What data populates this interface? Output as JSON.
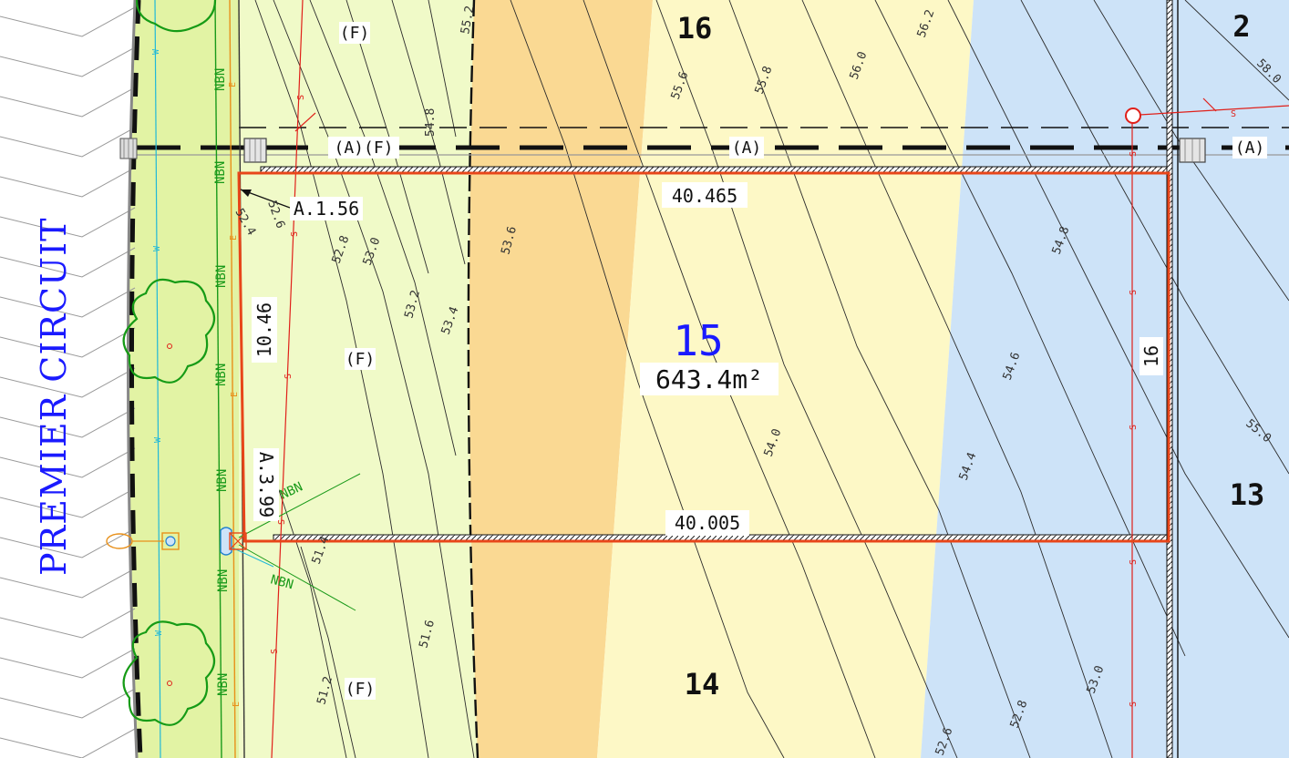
{
  "road": {
    "name": "PREMIER CIRCUIT"
  },
  "subject_lot": {
    "number": "15",
    "area": "643.4m²"
  },
  "neighbour_lots": {
    "north": "16",
    "south": "14",
    "east": "13",
    "north_east": "2"
  },
  "dimensions": {
    "north_boundary": "40.465",
    "south_boundary": "40.005",
    "west_frontage": "10.46",
    "east_boundary": "16"
  },
  "annotations": {
    "corner_north": "A.1.56",
    "corner_south": "A.3.99",
    "easement_af": "(A)(F)",
    "easement_a_middle": "(A)",
    "easement_a_east": "(A)",
    "fill_north": "(F)",
    "fill_middle": "(F)",
    "fill_south": "(F)"
  },
  "service_labels": {
    "nbn": "NBN",
    "sewer": "S",
    "water": "W",
    "electric": "E"
  },
  "contours": [
    {
      "label": "55.2"
    },
    {
      "label": "54.8"
    },
    {
      "label": "55.6"
    },
    {
      "label": "55.8"
    },
    {
      "label": "56.0"
    },
    {
      "label": "56.2"
    },
    {
      "label": "58.0"
    },
    {
      "label": "52.6"
    },
    {
      "label": "52.4"
    },
    {
      "label": "52.8"
    },
    {
      "label": "53.0"
    },
    {
      "label": "53.6"
    },
    {
      "label": "53.2"
    },
    {
      "label": "53.4"
    },
    {
      "label": "54.8"
    },
    {
      "label": "54.6"
    },
    {
      "label": "54.0"
    },
    {
      "label": "54.4"
    },
    {
      "label": "55.0"
    },
    {
      "label": "51.4"
    },
    {
      "label": "51.6"
    },
    {
      "label": "51.2"
    },
    {
      "label": "52.6"
    },
    {
      "label": "52.8"
    },
    {
      "label": "53.0"
    }
  ],
  "colors": {
    "verge_green": "#e2f3a4",
    "fill_light_green": "#f0fac8",
    "cut_orange": "#fad993",
    "cut_cream": "#fdf8c6",
    "low_blue": "#cde3f8",
    "lot_boundary": "#e8461a",
    "road_name_blue": "#1a1aff",
    "lot_number_blue": "#1a1aff",
    "nbn_green": "#1a9a1a",
    "sewer_red": "#e0201a",
    "water_cyan": "#20b8d8",
    "electric_orange": "#e8901a"
  }
}
